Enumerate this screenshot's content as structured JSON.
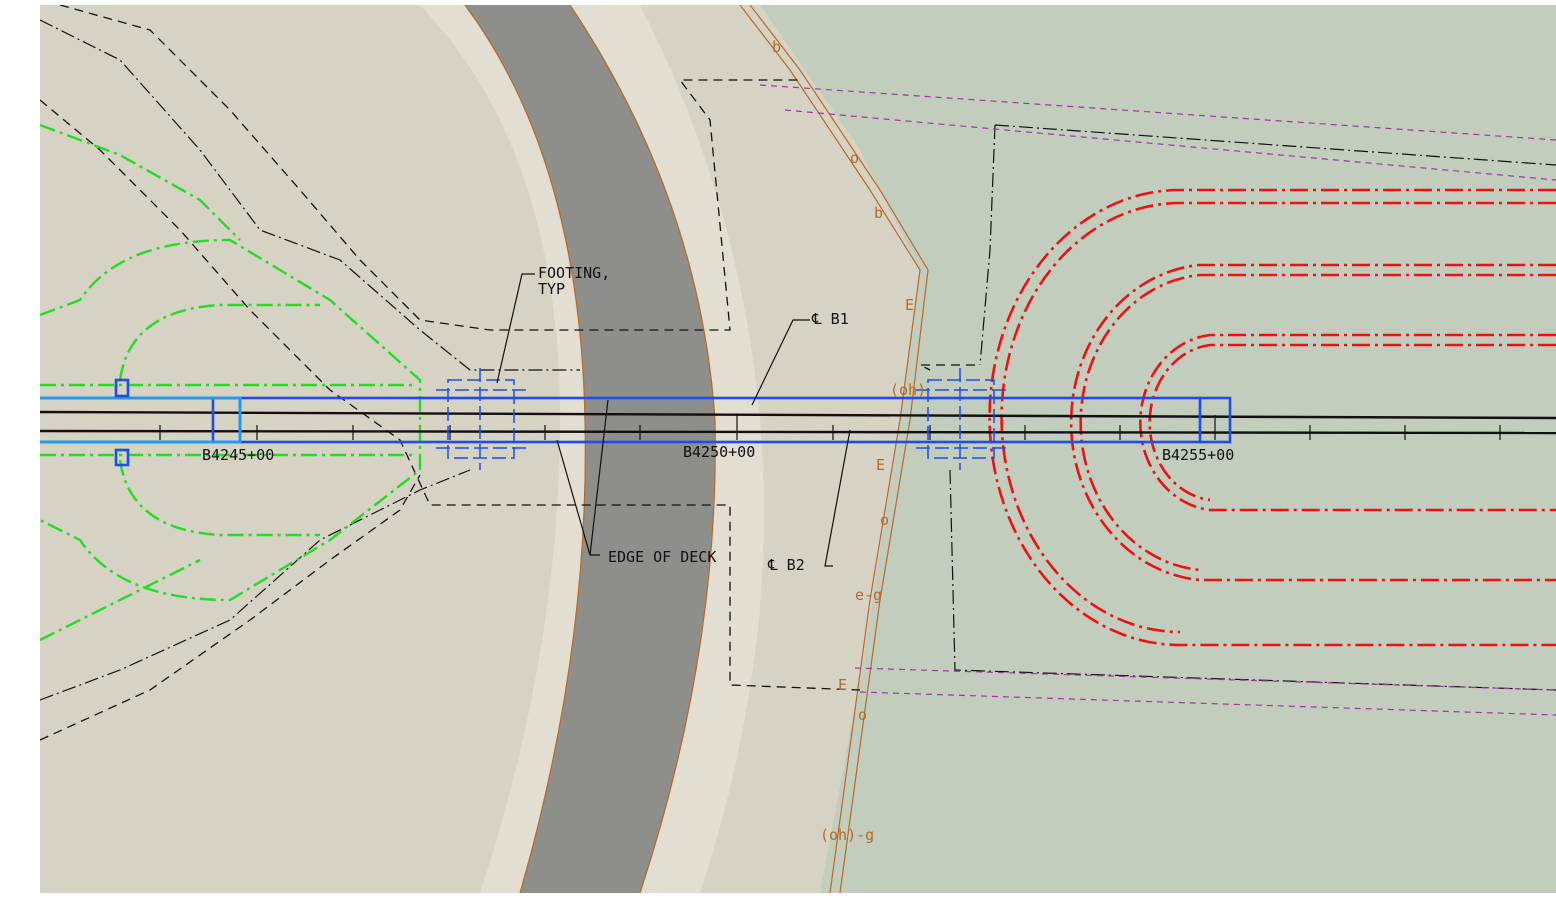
{
  "annotations": {
    "footing": [
      "FOOTING,",
      "TYP"
    ],
    "cl_b1": "℄ B1",
    "edge_of_deck": "EDGE OF DECK",
    "cl_b2": "℄ B2"
  },
  "stations": [
    "B4245+00",
    "B4250+00",
    "B4255+00"
  ],
  "utility_labels": [
    "b",
    "o",
    "b",
    "E",
    "(oh)",
    "E",
    "o",
    "e-g",
    "E",
    "o",
    "(oh)-g"
  ]
}
